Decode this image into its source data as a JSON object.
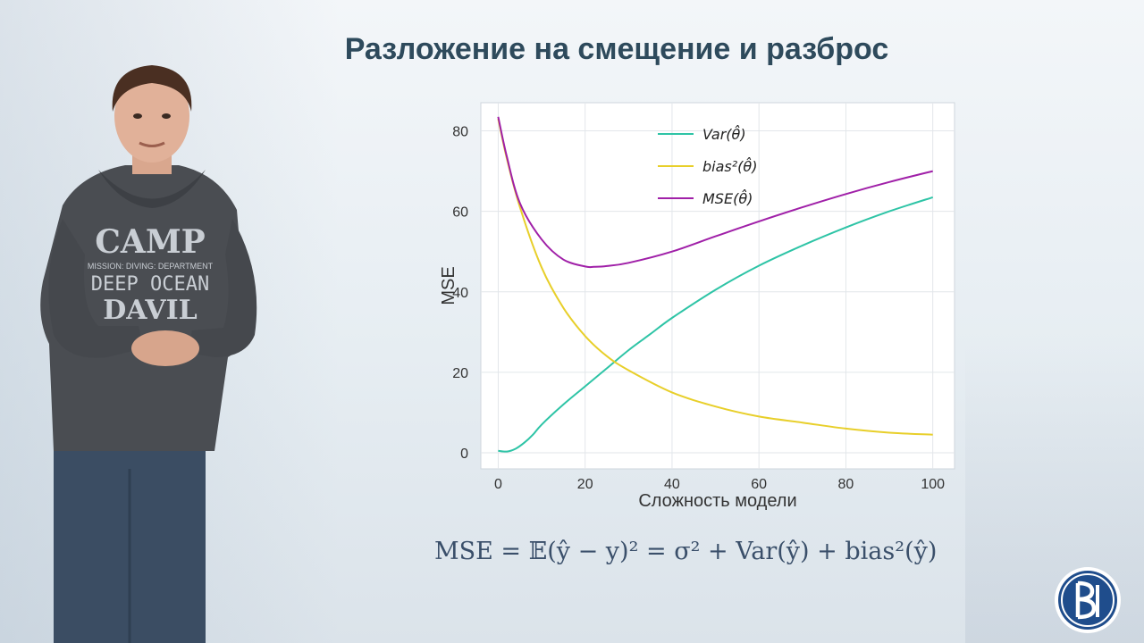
{
  "slide": {
    "title": "Разложение на смещение и разброс",
    "formula": "MSE = 𝔼(ŷ − y)²  = σ² +  Var(ŷ) + bias²(ŷ)"
  },
  "presenter": {
    "shirt_lines": [
      "CAMP",
      "MISSION: DIVING: DEPARTMENT",
      "DEEP OCEAN",
      "DAVIL"
    ]
  },
  "chart_data": {
    "type": "line",
    "xlabel": "Сложность модели",
    "ylabel": "MSE",
    "xlim": [
      -4,
      105
    ],
    "ylim": [
      -4,
      87
    ],
    "xticks": [
      0,
      20,
      40,
      60,
      80,
      100
    ],
    "yticks": [
      0,
      20,
      40,
      60,
      80
    ],
    "grid": true,
    "legend_position": "top-center",
    "series": [
      {
        "name": "Var(θ̂)",
        "color": "#2ec4a6",
        "x": [
          0,
          2,
          4,
          6,
          8,
          10,
          15,
          20,
          25,
          30,
          35,
          40,
          50,
          60,
          70,
          80,
          90,
          100
        ],
        "y": [
          0.5,
          0.3,
          1,
          2.5,
          4.5,
          7,
          12,
          16.5,
          21,
          25.5,
          29.5,
          33.5,
          40.5,
          46.5,
          51.5,
          56,
          60,
          63.5
        ]
      },
      {
        "name": "bias²(θ̂)",
        "color": "#e8cf2a",
        "x": [
          0,
          2,
          5,
          10,
          15,
          20,
          25,
          30,
          40,
          50,
          60,
          70,
          80,
          90,
          100
        ],
        "y": [
          83,
          73,
          61,
          46,
          36,
          29,
          24,
          20.5,
          15,
          11.5,
          9,
          7.5,
          6,
          5,
          4.5
        ]
      },
      {
        "name": "MSE(θ̂)",
        "color": "#a020a8",
        "x": [
          0,
          2,
          5,
          10,
          15,
          20,
          22,
          25,
          30,
          40,
          50,
          60,
          70,
          80,
          90,
          100
        ],
        "y": [
          83.5,
          73.5,
          62,
          53,
          48,
          46.3,
          46.2,
          46.4,
          47.2,
          50,
          53.8,
          57.5,
          61,
          64.3,
          67.3,
          70
        ]
      }
    ]
  },
  "colors": {
    "title": "#2e4a5c",
    "formula": "#3a4f6a",
    "logo_blue": "#1f4d8c"
  }
}
